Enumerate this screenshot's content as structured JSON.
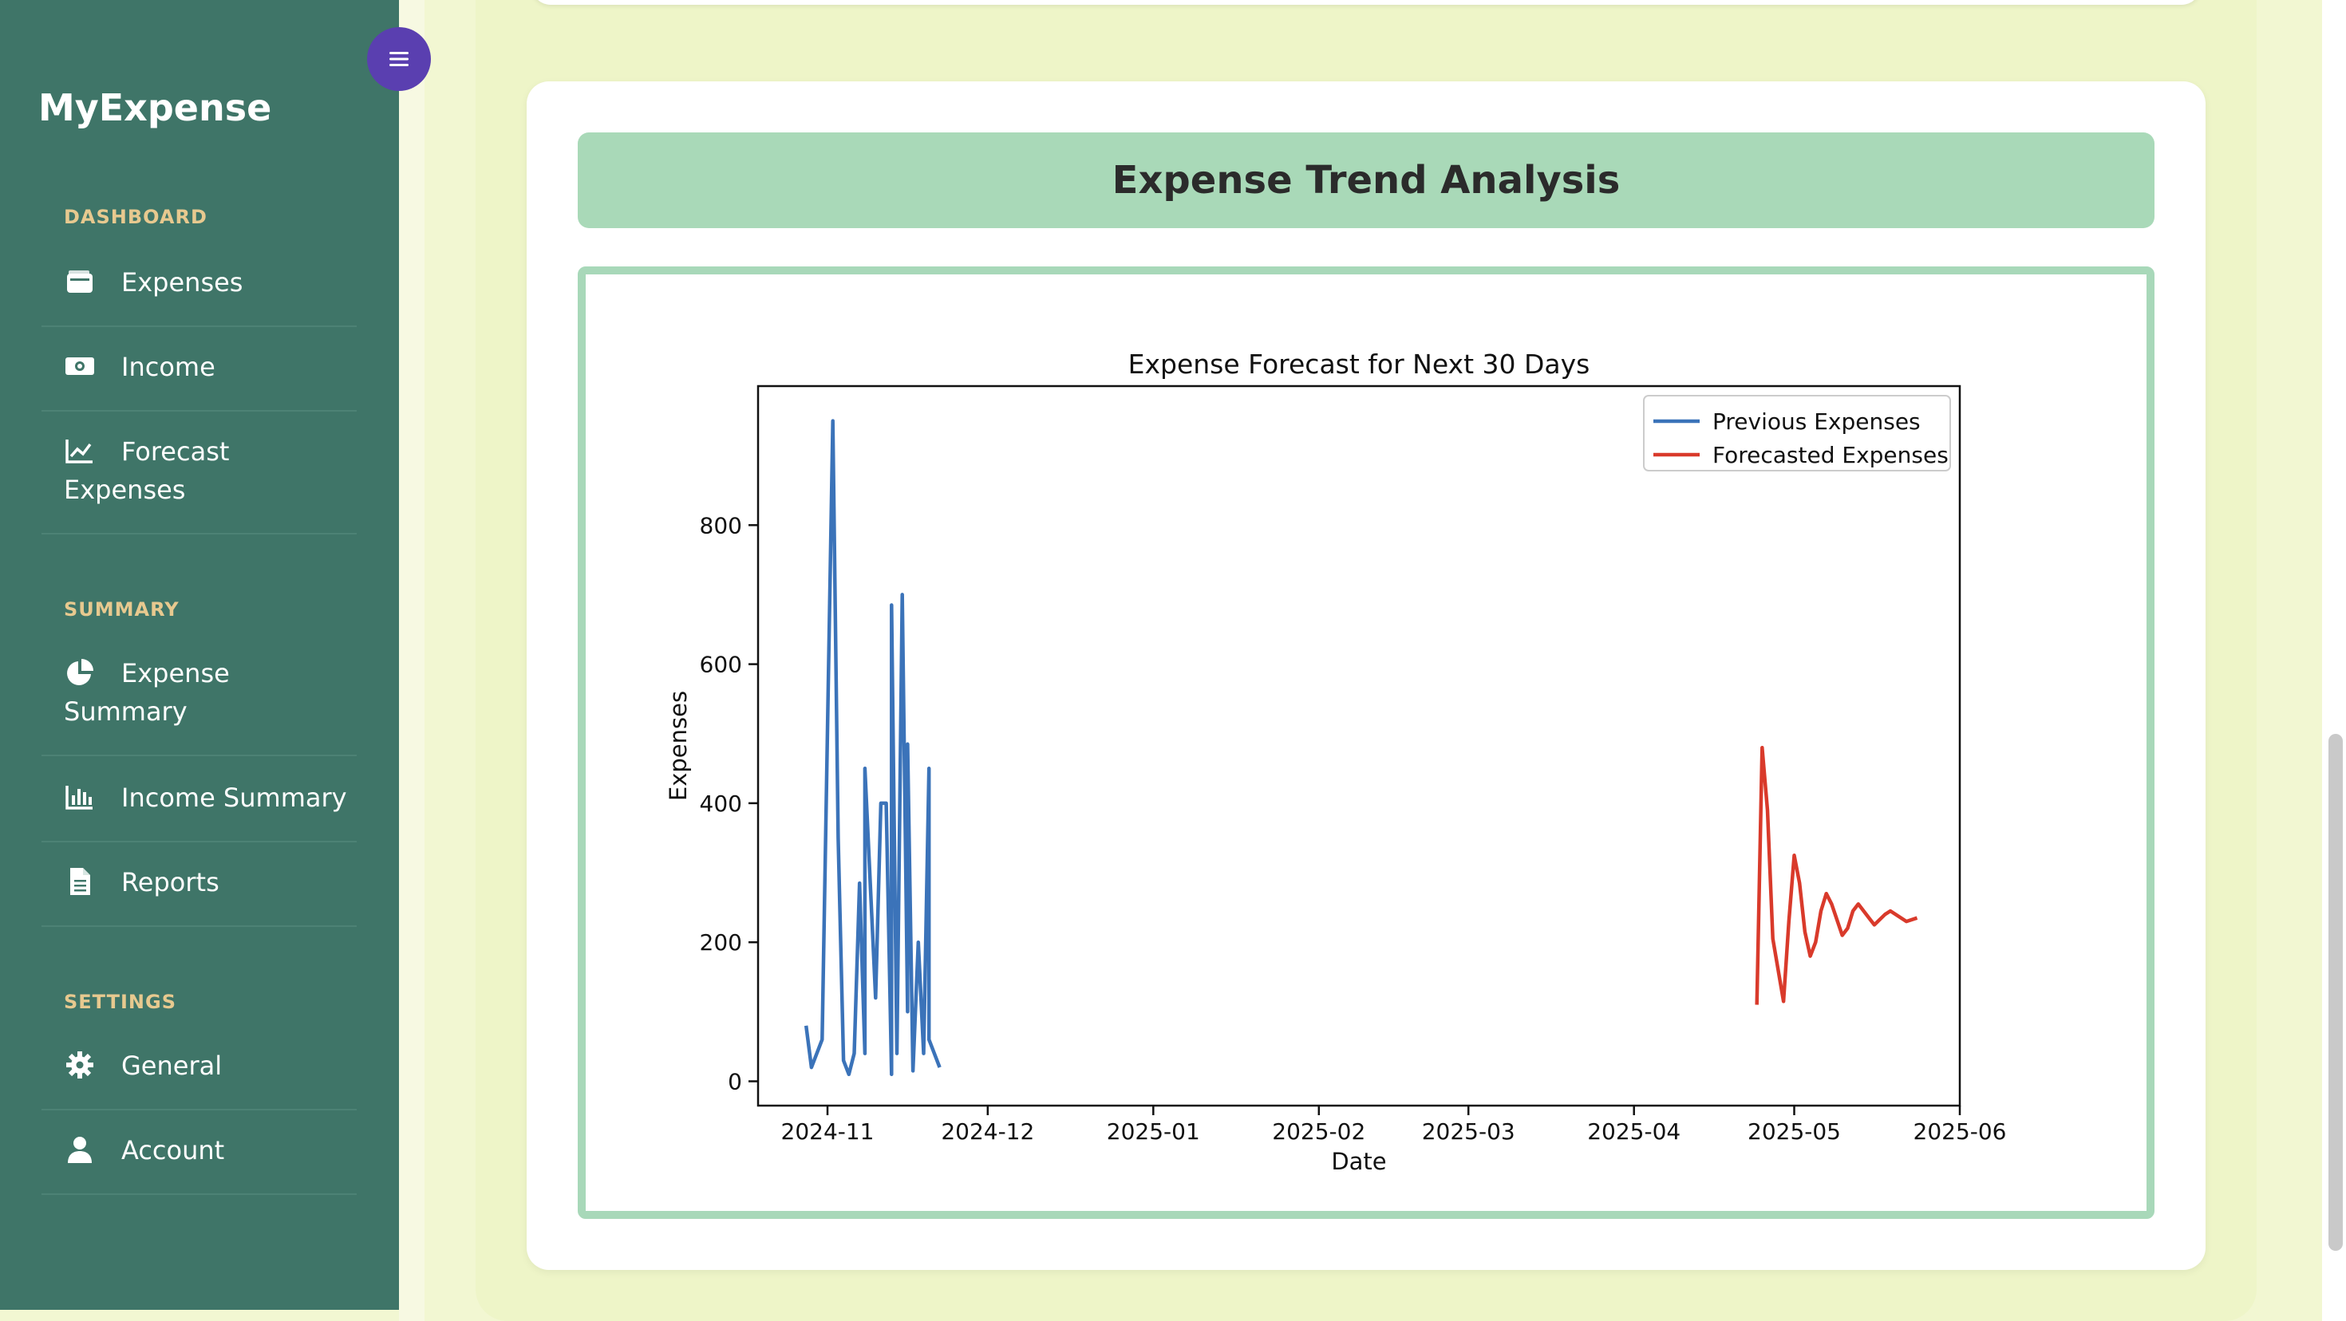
{
  "sidebar": {
    "brand": "MyExpense",
    "sections": {
      "dashboard": "DASHBOARD",
      "summary": "SUMMARY",
      "settings": "SETTINGS"
    },
    "items": {
      "expenses": "Expenses",
      "income": "Income",
      "forecast_line1": "Forecast",
      "forecast_line2": "Expenses",
      "expense_summary_line1": "Expense",
      "expense_summary_line2": "Summary",
      "income_summary": "Income Summary",
      "reports": "Reports",
      "general": "General",
      "account": "Account"
    }
  },
  "main": {
    "card_title": "Expense Trend Analysis"
  },
  "colors": {
    "sidebar": "#3f7568",
    "accent": "#5a3fb0",
    "header": "#a9d9b8",
    "previous_series": "#3b73b9",
    "forecast_series": "#d93a2b"
  },
  "chart_data": {
    "type": "line",
    "title": "Expense Forecast for Next 30 Days",
    "xlabel": "Date",
    "ylabel": "Expenses",
    "x_ticks": [
      "2024-11",
      "2024-12",
      "2025-01",
      "2025-02",
      "2025-03",
      "2025-04",
      "2025-05",
      "2025-06"
    ],
    "y_ticks": [
      0,
      200,
      400,
      600,
      800
    ],
    "xlim": [
      "2024-10-19",
      "2025-06-01"
    ],
    "ylim": [
      -35,
      1000
    ],
    "legend": "top-right",
    "grid": false,
    "series": [
      {
        "name": "Previous Expenses",
        "color": "#3b73b9",
        "points": [
          [
            "2024-10-28",
            80
          ],
          [
            "2024-10-29",
            20
          ],
          [
            "2024-10-31",
            60
          ],
          [
            "2024-11-02",
            950
          ],
          [
            "2024-11-03",
            350
          ],
          [
            "2024-11-04",
            30
          ],
          [
            "2024-11-05",
            10
          ],
          [
            "2024-11-06",
            40
          ],
          [
            "2024-11-07",
            285
          ],
          [
            "2024-11-08",
            40
          ],
          [
            "2024-11-08",
            450
          ],
          [
            "2024-11-10",
            120
          ],
          [
            "2024-11-11",
            400
          ],
          [
            "2024-11-12",
            400
          ],
          [
            "2024-11-13",
            10
          ],
          [
            "2024-11-13",
            685
          ],
          [
            "2024-11-14",
            40
          ],
          [
            "2024-11-15",
            700
          ],
          [
            "2024-11-16",
            100
          ],
          [
            "2024-11-16",
            485
          ],
          [
            "2024-11-17",
            15
          ],
          [
            "2024-11-18",
            200
          ],
          [
            "2024-11-19",
            40
          ],
          [
            "2024-11-20",
            450
          ],
          [
            "2024-11-20",
            60
          ],
          [
            "2024-11-22",
            20
          ]
        ]
      },
      {
        "name": "Forecasted Expenses",
        "color": "#d93a2b",
        "points": [
          [
            "2025-04-24",
            110
          ],
          [
            "2025-04-25",
            480
          ],
          [
            "2025-04-26",
            390
          ],
          [
            "2025-04-27",
            205
          ],
          [
            "2025-04-29",
            115
          ],
          [
            "2025-04-30",
            230
          ],
          [
            "2025-05-01",
            325
          ],
          [
            "2025-05-02",
            285
          ],
          [
            "2025-05-03",
            215
          ],
          [
            "2025-05-04",
            180
          ],
          [
            "2025-05-05",
            200
          ],
          [
            "2025-05-06",
            245
          ],
          [
            "2025-05-07",
            270
          ],
          [
            "2025-05-08",
            255
          ],
          [
            "2025-05-10",
            210
          ],
          [
            "2025-05-11",
            220
          ],
          [
            "2025-05-12",
            245
          ],
          [
            "2025-05-13",
            255
          ],
          [
            "2025-05-15",
            235
          ],
          [
            "2025-05-16",
            225
          ],
          [
            "2025-05-18",
            240
          ],
          [
            "2025-05-19",
            245
          ],
          [
            "2025-05-21",
            235
          ],
          [
            "2025-05-22",
            230
          ],
          [
            "2025-05-24",
            235
          ]
        ]
      }
    ]
  }
}
